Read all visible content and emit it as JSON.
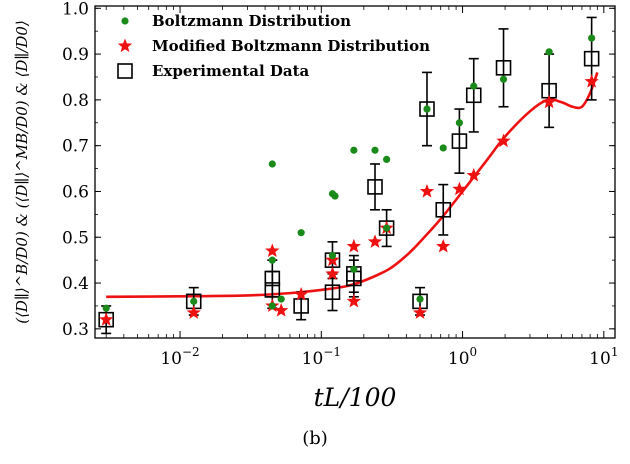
{
  "chart_data": {
    "type": "scatter",
    "xscale": "log",
    "xlim": [
      0.0025,
      12
    ],
    "ylim": [
      0.28,
      1.005
    ],
    "xlabel": "tL/100",
    "ylabel": "(⟨D∥⟩^B/D0) & (⟨D∥⟩^MB/D0) & ⟨D∥/D0⟩",
    "xticks": [
      {
        "value": 0.01,
        "base": "10",
        "exp": "−2"
      },
      {
        "value": 0.1,
        "base": "10",
        "exp": "−1"
      },
      {
        "value": 1,
        "base": "10",
        "exp": "0"
      },
      {
        "value": 10,
        "base": "10",
        "exp": "1"
      }
    ],
    "yticks": [
      {
        "value": 0.3,
        "label": "0.3"
      },
      {
        "value": 0.4,
        "label": "0.4"
      },
      {
        "value": 0.5,
        "label": "0.5"
      },
      {
        "value": 0.6,
        "label": "0.6"
      },
      {
        "value": 0.7,
        "label": "0.7"
      },
      {
        "value": 0.8,
        "label": "0.8"
      },
      {
        "value": 0.9,
        "label": "0.9"
      },
      {
        "value": 1.0,
        "label": "1.0"
      }
    ],
    "legend_position": "top-left",
    "grid": false,
    "series": [
      {
        "name": "Boltzmann Distribution",
        "marker": "circle",
        "color": "#1a8a1a",
        "points": [
          [
            0.003,
            0.345
          ],
          [
            0.0125,
            0.36
          ],
          [
            0.045,
            0.66
          ],
          [
            0.045,
            0.45
          ],
          [
            0.045,
            0.35
          ],
          [
            0.052,
            0.365
          ],
          [
            0.072,
            0.51
          ],
          [
            0.12,
            0.595
          ],
          [
            0.125,
            0.59
          ],
          [
            0.12,
            0.46
          ],
          [
            0.17,
            0.69
          ],
          [
            0.17,
            0.43
          ],
          [
            0.24,
            0.69
          ],
          [
            0.29,
            0.67
          ],
          [
            0.29,
            0.52
          ],
          [
            0.5,
            0.365
          ],
          [
            0.56,
            0.78
          ],
          [
            0.73,
            0.695
          ],
          [
            0.95,
            0.75
          ],
          [
            1.2,
            0.83
          ],
          [
            1.95,
            0.845
          ],
          [
            4.1,
            0.905
          ],
          [
            8.2,
            0.935
          ]
        ]
      },
      {
        "name": "Modified Boltzmann Distribution",
        "marker": "star",
        "color": "#ee1111",
        "points": [
          [
            0.003,
            0.32
          ],
          [
            0.0125,
            0.335
          ],
          [
            0.045,
            0.47
          ],
          [
            0.045,
            0.35
          ],
          [
            0.052,
            0.34
          ],
          [
            0.072,
            0.375
          ],
          [
            0.12,
            0.45
          ],
          [
            0.12,
            0.42
          ],
          [
            0.17,
            0.48
          ],
          [
            0.17,
            0.36
          ],
          [
            0.24,
            0.49
          ],
          [
            0.29,
            0.52
          ],
          [
            0.5,
            0.335
          ],
          [
            0.56,
            0.6
          ],
          [
            0.73,
            0.48
          ],
          [
            0.95,
            0.605
          ],
          [
            1.2,
            0.635
          ],
          [
            1.95,
            0.71
          ],
          [
            4.1,
            0.795
          ],
          [
            8.2,
            0.84
          ]
        ]
      },
      {
        "name": "Experimental Data",
        "marker": "square-open",
        "color": "#000000",
        "points": [
          {
            "x": 0.003,
            "y": 0.32,
            "err": 0.03
          },
          {
            "x": 0.0125,
            "y": 0.36,
            "err": 0.03
          },
          {
            "x": 0.045,
            "y": 0.41,
            "err": 0.04
          },
          {
            "x": 0.045,
            "y": 0.385,
            "err": 0.04
          },
          {
            "x": 0.072,
            "y": 0.35,
            "err": 0.03
          },
          {
            "x": 0.12,
            "y": 0.45,
            "err": 0.04
          },
          {
            "x": 0.12,
            "y": 0.38,
            "err": 0.04
          },
          {
            "x": 0.17,
            "y": 0.42,
            "err": 0.04
          },
          {
            "x": 0.17,
            "y": 0.41,
            "err": 0.04
          },
          {
            "x": 0.24,
            "y": 0.61,
            "err": 0.05
          },
          {
            "x": 0.29,
            "y": 0.52,
            "err": 0.04
          },
          {
            "x": 0.5,
            "y": 0.36,
            "err": 0.03
          },
          {
            "x": 0.56,
            "y": 0.78,
            "err": 0.08
          },
          {
            "x": 0.73,
            "y": 0.56,
            "err": 0.055
          },
          {
            "x": 0.95,
            "y": 0.71,
            "err": 0.07
          },
          {
            "x": 1.2,
            "y": 0.81,
            "err": 0.08
          },
          {
            "x": 1.95,
            "y": 0.87,
            "err": 0.085
          },
          {
            "x": 4.1,
            "y": 0.82,
            "err": 0.08
          },
          {
            "x": 8.2,
            "y": 0.89,
            "err": 0.09
          }
        ]
      }
    ],
    "fit_curve": {
      "color": "#ee1111",
      "points": [
        [
          0.003,
          0.37
        ],
        [
          0.01,
          0.371
        ],
        [
          0.03,
          0.373
        ],
        [
          0.06,
          0.378
        ],
        [
          0.1,
          0.385
        ],
        [
          0.15,
          0.393
        ],
        [
          0.2,
          0.405
        ],
        [
          0.3,
          0.43
        ],
        [
          0.4,
          0.46
        ],
        [
          0.5,
          0.49
        ],
        [
          0.7,
          0.54
        ],
        [
          1.0,
          0.6
        ],
        [
          1.5,
          0.67
        ],
        [
          2.0,
          0.72
        ],
        [
          3.0,
          0.775
        ],
        [
          4.0,
          0.8
        ],
        [
          5.0,
          0.795
        ],
        [
          6.0,
          0.785
        ],
        [
          7.0,
          0.785
        ],
        [
          8.0,
          0.815
        ],
        [
          9.0,
          0.86
        ]
      ]
    }
  },
  "caption": "(b)"
}
